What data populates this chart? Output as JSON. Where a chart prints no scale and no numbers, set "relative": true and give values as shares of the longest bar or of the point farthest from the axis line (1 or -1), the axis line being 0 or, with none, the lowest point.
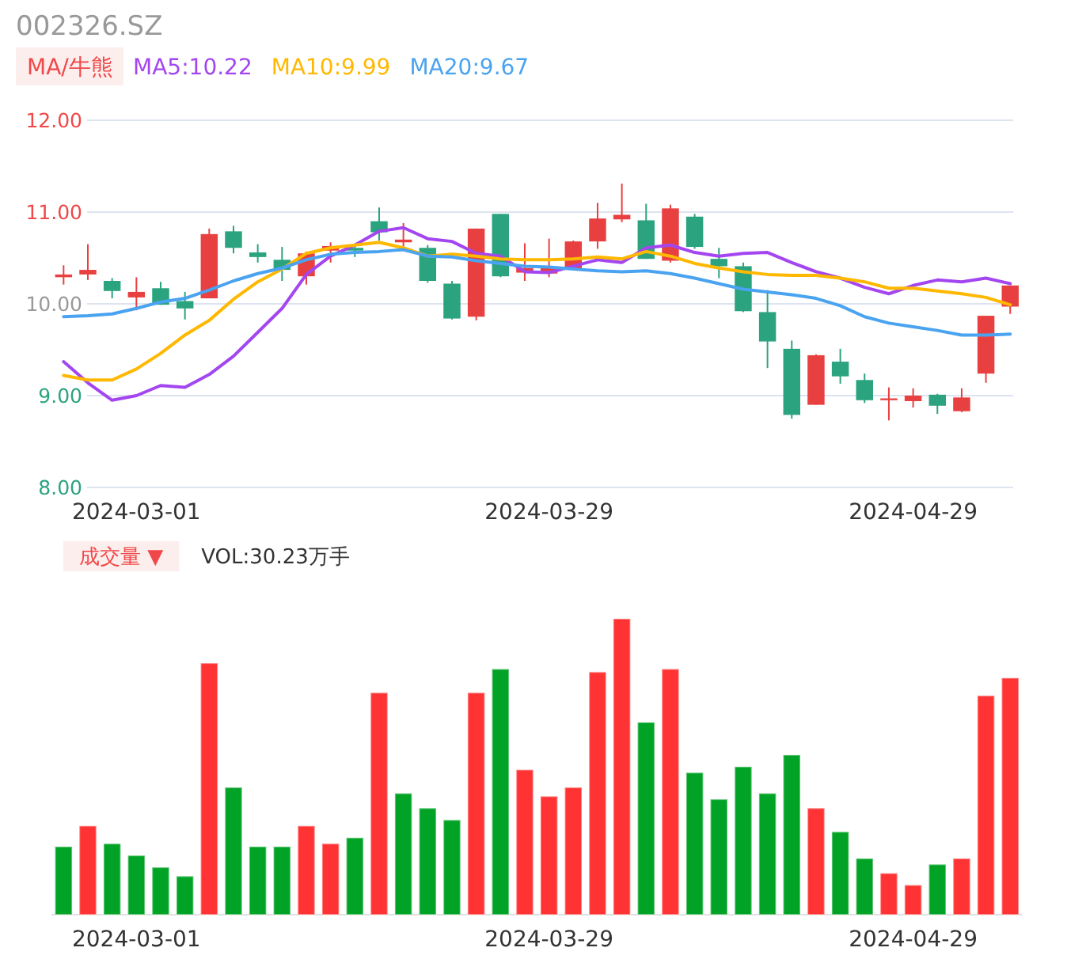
{
  "chart_data": [
    {
      "type": "candlestick",
      "title": "002326.SZ",
      "annotations": [
        "MA/牛熊"
      ],
      "categories": [
        null,
        null,
        null,
        "2024-03-01",
        null,
        null,
        null,
        null,
        null,
        null,
        null,
        null,
        null,
        null,
        null,
        null,
        null,
        null,
        null,
        null,
        "2024-03-29",
        null,
        null,
        null,
        null,
        null,
        null,
        null,
        null,
        null,
        null,
        null,
        null,
        null,
        null,
        "2024-04-29",
        null,
        null,
        null,
        null
      ],
      "ohlc": [
        [
          10.29,
          10.42,
          10.21,
          10.32
        ],
        [
          10.32,
          10.65,
          10.26,
          10.37
        ],
        [
          10.25,
          10.28,
          10.06,
          10.14
        ],
        [
          10.07,
          10.29,
          9.93,
          10.13
        ],
        [
          10.17,
          10.24,
          9.99,
          9.99
        ],
        [
          10.03,
          10.13,
          9.83,
          9.95
        ],
        [
          10.06,
          10.82,
          10.06,
          10.76
        ],
        [
          10.79,
          10.85,
          10.55,
          10.61
        ],
        [
          10.56,
          10.65,
          10.45,
          10.51
        ],
        [
          10.48,
          10.62,
          10.25,
          10.37
        ],
        [
          10.3,
          10.57,
          10.21,
          10.55
        ],
        [
          10.58,
          10.67,
          10.45,
          10.63
        ],
        [
          10.61,
          10.64,
          10.51,
          10.58
        ],
        [
          10.9,
          11.05,
          10.69,
          10.78
        ],
        [
          10.67,
          10.88,
          10.61,
          10.7
        ],
        [
          10.61,
          10.64,
          10.23,
          10.25
        ],
        [
          10.22,
          10.25,
          9.83,
          9.84
        ],
        [
          9.86,
          10.82,
          9.82,
          10.82
        ],
        [
          10.98,
          10.98,
          10.29,
          10.3
        ],
        [
          10.34,
          10.66,
          10.25,
          10.39
        ],
        [
          10.33,
          10.71,
          10.29,
          10.39
        ],
        [
          10.38,
          10.69,
          10.38,
          10.68
        ],
        [
          10.68,
          11.1,
          10.6,
          10.93
        ],
        [
          10.92,
          11.31,
          10.89,
          10.97
        ],
        [
          10.91,
          11.09,
          10.49,
          10.49
        ],
        [
          10.47,
          11.08,
          10.45,
          11.04
        ],
        [
          10.95,
          10.98,
          10.6,
          10.62
        ],
        [
          10.49,
          10.61,
          10.28,
          10.41
        ],
        [
          10.41,
          10.45,
          9.91,
          9.92
        ],
        [
          9.91,
          10.15,
          9.3,
          9.59
        ],
        [
          9.51,
          9.6,
          8.75,
          8.79
        ],
        [
          8.9,
          9.45,
          8.9,
          9.44
        ],
        [
          9.37,
          9.51,
          9.13,
          9.21
        ],
        [
          9.17,
          9.24,
          8.92,
          8.95
        ],
        [
          8.95,
          9.09,
          8.73,
          8.97
        ],
        [
          8.94,
          9.08,
          8.87,
          9.0
        ],
        [
          9.01,
          9.02,
          8.8,
          8.89
        ],
        [
          8.83,
          9.08,
          8.82,
          8.98
        ],
        [
          9.24,
          9.87,
          9.14,
          9.87
        ],
        [
          9.97,
          10.2,
          9.89,
          10.2
        ]
      ],
      "series": [
        {
          "type": "line",
          "name": "MA5:10.22",
          "color": "#a346f0",
          "values": [
            9.37,
            9.14,
            8.95,
            9.0,
            9.11,
            9.09,
            9.23,
            9.43,
            9.69,
            9.95,
            10.32,
            10.52,
            10.64,
            10.79,
            10.83,
            10.71,
            10.68,
            10.55,
            10.52,
            10.35,
            10.34,
            10.41,
            10.48,
            10.45,
            10.61,
            10.64,
            10.56,
            10.52,
            10.55,
            10.56,
            10.45,
            10.35,
            10.28,
            10.18,
            10.11,
            10.2,
            10.26,
            10.24,
            10.28,
            10.22
          ]
        },
        {
          "type": "line",
          "name": "MA10:9.99",
          "color": "#ffb800",
          "values": [
            9.22,
            9.17,
            9.17,
            9.29,
            9.46,
            9.66,
            9.82,
            10.05,
            10.24,
            10.38,
            10.55,
            10.61,
            10.64,
            10.67,
            10.61,
            10.52,
            10.54,
            10.52,
            10.49,
            10.48,
            10.48,
            10.49,
            10.51,
            10.49,
            10.57,
            10.52,
            10.44,
            10.39,
            10.35,
            10.32,
            10.31,
            10.31,
            10.28,
            10.24,
            10.17,
            10.17,
            10.14,
            10.11,
            10.07,
            9.99
          ]
        },
        {
          "type": "line",
          "name": "MA20:9.67",
          "color": "#4aa3f0",
          "values": [
            9.86,
            9.87,
            9.89,
            9.95,
            10.02,
            10.06,
            10.15,
            10.25,
            10.33,
            10.39,
            10.48,
            10.54,
            10.56,
            10.57,
            10.59,
            10.52,
            10.51,
            10.47,
            10.44,
            10.41,
            10.4,
            10.38,
            10.36,
            10.35,
            10.36,
            10.33,
            10.28,
            10.22,
            10.16,
            10.13,
            10.1,
            10.06,
            9.98,
            9.86,
            9.79,
            9.75,
            9.71,
            9.66,
            9.66,
            9.67
          ]
        }
      ],
      "ylim": [
        8,
        12
      ],
      "yticks": [
        {
          "value": 8,
          "label": "8.00"
        },
        {
          "value": 9,
          "label": "9.00"
        },
        {
          "value": 10,
          "label": "10.00"
        },
        {
          "value": 11,
          "label": "11.00"
        },
        {
          "value": 12,
          "label": "12.00"
        }
      ],
      "grid": "y",
      "legend": "top left"
    },
    {
      "type": "bar",
      "relative": true,
      "tick_labels": "x",
      "annotations": [
        "成交量 ▼",
        "VOL:30.23万手"
      ],
      "categories": [
        null,
        null,
        null,
        "2024-03-01",
        null,
        null,
        null,
        null,
        null,
        null,
        null,
        null,
        null,
        null,
        null,
        null,
        null,
        null,
        null,
        null,
        "2024-03-29",
        null,
        null,
        null,
        null,
        null,
        null,
        null,
        null,
        null,
        null,
        null,
        null,
        null,
        null,
        "2024-04-29",
        null,
        null,
        null,
        null
      ],
      "values": [
        0.23,
        0.3,
        0.24,
        0.2,
        0.16,
        0.13,
        0.85,
        0.43,
        0.23,
        0.23,
        0.3,
        0.24,
        0.26,
        0.75,
        0.41,
        0.36,
        0.32,
        0.75,
        0.83,
        0.49,
        0.4,
        0.43,
        0.82,
        1,
        0.65,
        0.83,
        0.48,
        0.39,
        0.5,
        0.41,
        0.54,
        0.36,
        0.28,
        0.19,
        0.14,
        0.1,
        0.17,
        0.19,
        0.74,
        0.8
      ],
      "colors": [
        "#00a325",
        "#ff3333",
        "#00a325",
        "#00a325",
        "#00a325",
        "#00a325",
        "#ff3333",
        "#00a325",
        "#00a325",
        "#00a325",
        "#ff3333",
        "#ff3333",
        "#00a325",
        "#ff3333",
        "#00a325",
        "#00a325",
        "#00a325",
        "#ff3333",
        "#00a325",
        "#ff3333",
        "#ff3333",
        "#ff3333",
        "#ff3333",
        "#ff3333",
        "#00a325",
        "#ff3333",
        "#00a325",
        "#00a325",
        "#00a325",
        "#00a325",
        "#00a325",
        "#ff3333",
        "#00a325",
        "#00a325",
        "#ff3333",
        "#ff3333",
        "#00a325",
        "#ff3333",
        "#ff3333",
        "#ff3333"
      ]
    }
  ]
}
